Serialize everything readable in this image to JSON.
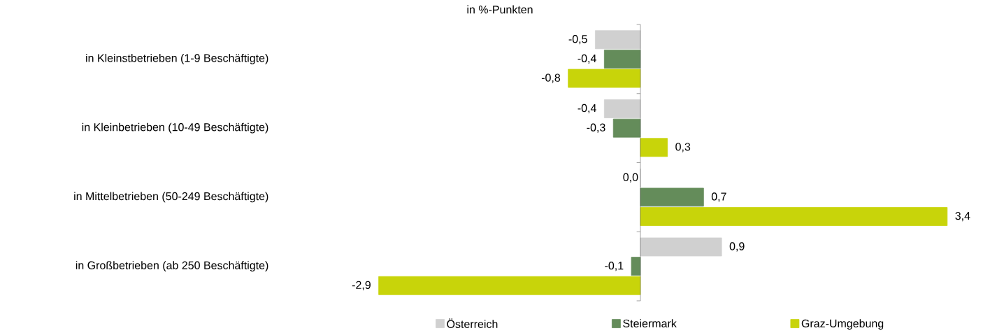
{
  "chart_data": {
    "type": "bar",
    "orientation": "horizontal",
    "subtitle": "in %-Punkten",
    "categories": [
      "in Kleinstbetrieben (1-9 Beschäftigte)",
      "in Kleinbetrieben (10-49 Beschäftigte)",
      "in Mittelbetrieben (50-249 Beschäftigte)",
      "in Großbetrieben (ab 250 Beschäftigte)"
    ],
    "series": [
      {
        "name": "Österreich",
        "color": "#d0d0d0",
        "values": [
          -0.5,
          -0.4,
          0.0,
          0.9
        ],
        "value_labels": [
          "-0,5",
          "-0,4",
          "0,0",
          "0,9"
        ]
      },
      {
        "name": "Steiermark",
        "color": "#648c5a",
        "values": [
          -0.4,
          -0.3,
          0.7,
          -0.1
        ],
        "value_labels": [
          "-0,4",
          "-0,3",
          "0,7",
          "-0,1"
        ]
      },
      {
        "name": "Graz-Umgebung",
        "color": "#c8d40a",
        "values": [
          -0.8,
          0.3,
          3.4,
          -2.9
        ],
        "value_labels": [
          "-0,8",
          "0,3",
          "3,4",
          "-2,9"
        ]
      }
    ],
    "legend": "bottom"
  }
}
